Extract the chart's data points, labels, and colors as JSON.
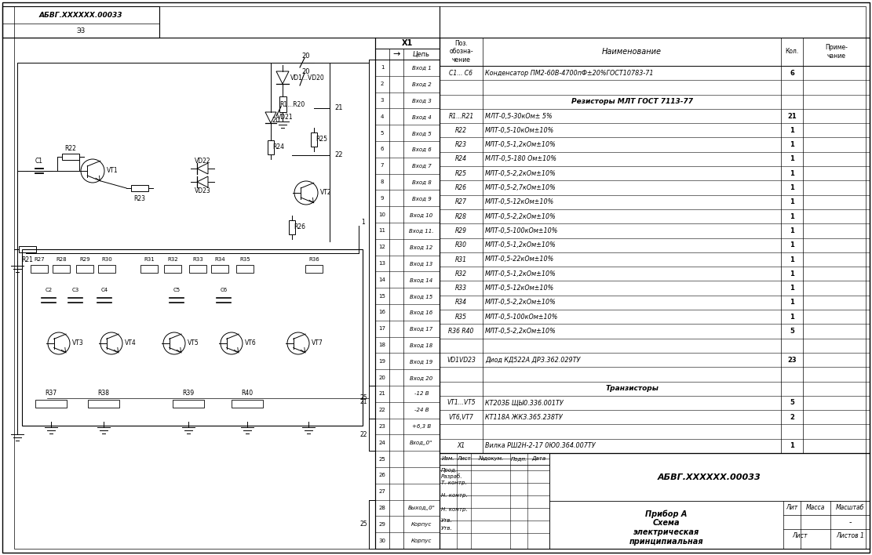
{
  "bg_color": "#ffffff",
  "line_color": "#000000",
  "title_block": {
    "doc_num": "АБВГ.XXXXXX.00033",
    "name1": "Прибор А",
    "name2": "Схема",
    "name3": "электрическая",
    "name4": "принципиальная",
    "lit": "Лит",
    "massa": "Масса",
    "masshtab": "Масштаб",
    "list_label": "Лист",
    "listov": "Листов 1",
    "izm": "Изм.",
    "list2": "Лист",
    "nedokum": "№докум.",
    "podp": "Подп.",
    "data_lbl": "Дата",
    "razrab": "Разраб.",
    "prod": "Прод.",
    "t_kontr": "Т. контр.",
    "n_kontr": "Н. контр.",
    "utv": "Утв.",
    "dash": "-"
  },
  "bom_rows": [
    [
      "C1... C6",
      "Конденсатор ПМ2-60В-4700пФ±20%ГОСТ10783-71",
      "6",
      ""
    ],
    [
      "",
      "",
      "",
      ""
    ],
    [
      "",
      "Резисторы МЛТ ГОСТ 7113-77",
      "",
      ""
    ],
    [
      "R1...R21",
      "МЛТ-0,5-30кОм± 5%",
      "21",
      ""
    ],
    [
      "R22",
      "МЛТ-0,5-10кОм±10%",
      "1",
      ""
    ],
    [
      "R23",
      "МЛТ-0,5-1,2кОм±10%",
      "1",
      ""
    ],
    [
      "R24",
      "МЛТ-0,5-180 Ом±10%",
      "1",
      ""
    ],
    [
      "R25",
      "МЛТ-0,5-2,2кОм±10%",
      "1",
      ""
    ],
    [
      "R26",
      "МЛТ-0,5-2,7кОм±10%",
      "1",
      ""
    ],
    [
      "R27",
      "МЛТ-0,5-12кОм±10%",
      "1",
      ""
    ],
    [
      "R28",
      "МЛТ-0,5-2,2кОм±10%",
      "1",
      ""
    ],
    [
      "R29",
      "МЛТ-0,5-100кОм±10%",
      "1",
      ""
    ],
    [
      "R30",
      "МЛТ-0,5-1,2кОм±10%",
      "1",
      ""
    ],
    [
      "R31",
      "МЛТ-0,5-22кОм±10%",
      "1",
      ""
    ],
    [
      "R32",
      "МЛТ-0,5-1,2кОм±10%",
      "1",
      ""
    ],
    [
      "R33",
      "МЛТ-0,5-12кОм±10%",
      "1",
      ""
    ],
    [
      "R34",
      "МЛТ-0,5-2,2кОм±10%",
      "1",
      ""
    ],
    [
      "R35",
      "МЛТ-0,5-100кОм±10%",
      "1",
      ""
    ],
    [
      "R36 R40",
      "МЛТ-0,5-2,2кОм±10%",
      "5",
      ""
    ],
    [
      "",
      "",
      "",
      ""
    ],
    [
      "VD1VD23",
      "Диод КД522А ДРЗ.362.029ТУ",
      "23",
      ""
    ],
    [
      "",
      "",
      "",
      ""
    ],
    [
      "",
      "Транзисторы",
      "",
      ""
    ],
    [
      "VT1...VT5",
      "КТ203Б ЩЫ0.336.001ТУ",
      "5",
      ""
    ],
    [
      "VT6,VT7",
      "КТ118А ЖКЗ.365.238ТУ",
      "2",
      ""
    ],
    [
      "",
      "",
      "",
      ""
    ],
    [
      "X1",
      "Вилка РШ2Н-2-17 0Ю0.364.007ТУ",
      "1",
      ""
    ]
  ],
  "connector_rows": [
    [
      1,
      "Вход 1"
    ],
    [
      2,
      "Вход 2"
    ],
    [
      3,
      "Вход 3"
    ],
    [
      4,
      "Вход 4"
    ],
    [
      5,
      "Вход 5"
    ],
    [
      6,
      "Вход 6"
    ],
    [
      7,
      "Вход 7"
    ],
    [
      8,
      "Вход 8"
    ],
    [
      9,
      "Вход 9"
    ],
    [
      10,
      "Вход 10"
    ],
    [
      11,
      "Вход 11."
    ],
    [
      12,
      "Вход 12"
    ],
    [
      13,
      "Вход 13"
    ],
    [
      14,
      "Вход 14"
    ],
    [
      15,
      "Вход 15"
    ],
    [
      16,
      "Вход 16"
    ],
    [
      17,
      "Вход 17"
    ],
    [
      18,
      "Вход 18"
    ],
    [
      19,
      "Вход 19"
    ],
    [
      20,
      "Вход 20"
    ],
    [
      21,
      "-12 В"
    ],
    [
      22,
      "-24 В"
    ],
    [
      23,
      "+6,3 В"
    ],
    [
      24,
      "Вход„0\""
    ],
    [
      25,
      ""
    ],
    [
      26,
      ""
    ],
    [
      27,
      ""
    ],
    [
      28,
      "Выход„0\""
    ],
    [
      29,
      "Корпус"
    ],
    [
      30,
      "Корпус"
    ]
  ],
  "schematic_title": "АБВГ.XXXXXX.00033"
}
